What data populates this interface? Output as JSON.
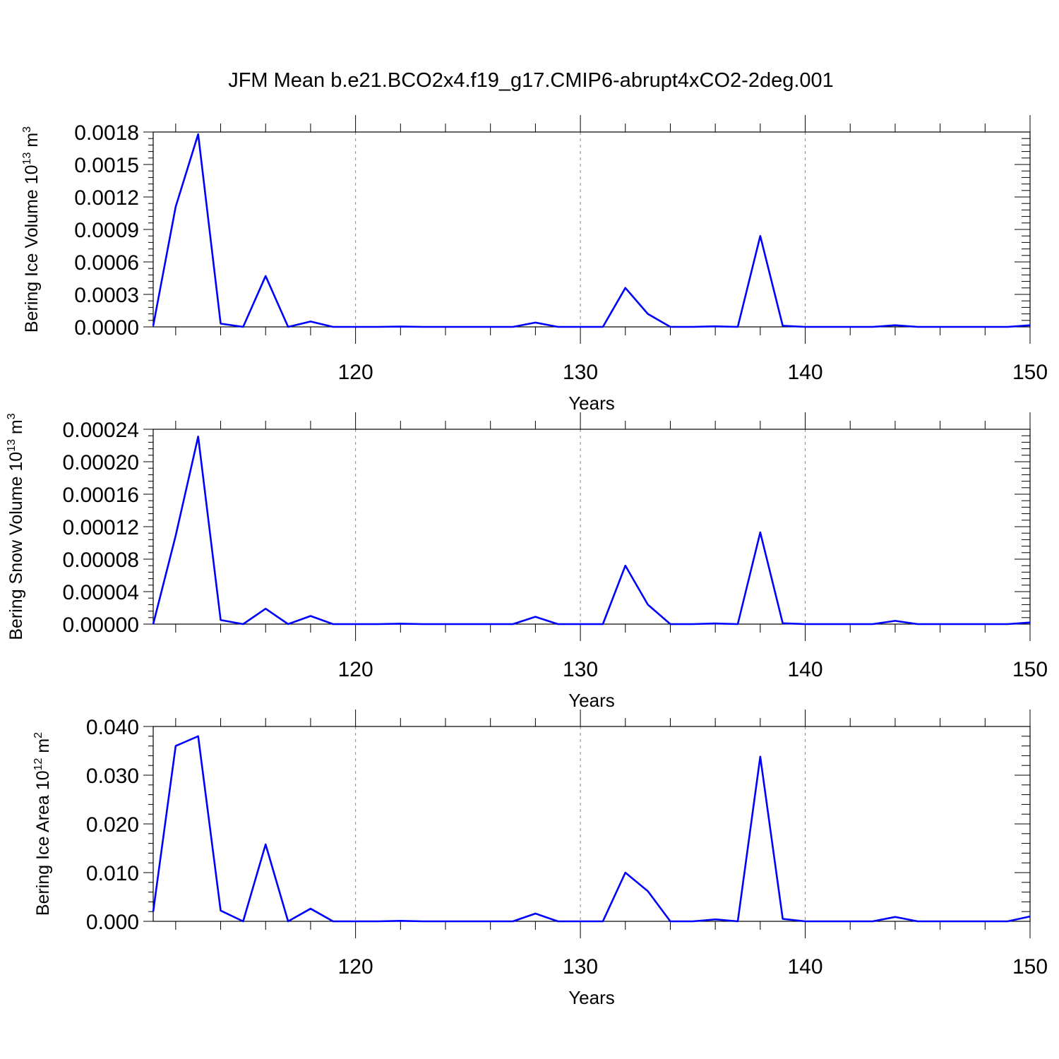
{
  "title": "JFM Mean b.e21.BCO2x4.f19_g17.CMIP6-abrupt4xCO2-2deg.001",
  "line_color": "#0000ff",
  "chart_data": [
    {
      "type": "line",
      "ylabel": "Bering Ice Volume 10",
      "ylabel_exp": "13",
      "ylabel_unit": " m",
      "ylabel_unit_exp": "3",
      "xlabel": "Years",
      "xlim": [
        111,
        150
      ],
      "ylim": [
        0,
        0.0018
      ],
      "yticks": [
        "0.0000",
        "0.0003",
        "0.0006",
        "0.0009",
        "0.0012",
        "0.0015",
        "0.0018"
      ],
      "ytick_values": [
        0,
        0.0003,
        0.0006,
        0.0009,
        0.0012,
        0.0015,
        0.0018
      ],
      "xticks": [
        "120",
        "130",
        "140",
        "150"
      ],
      "xtick_values": [
        120,
        130,
        140,
        150
      ],
      "grid": "dashed vertical at major x ticks",
      "x": [
        111,
        112,
        113,
        114,
        115,
        116,
        117,
        118,
        119,
        120,
        121,
        122,
        123,
        124,
        125,
        126,
        127,
        128,
        129,
        130,
        131,
        132,
        133,
        134,
        135,
        136,
        137,
        138,
        139,
        140,
        141,
        142,
        143,
        144,
        145,
        146,
        147,
        148,
        149,
        150
      ],
      "values": [
        1e-05,
        0.00111,
        0.00178,
        3e-05,
        0.0,
        0.00047,
        0.0,
        5e-05,
        0.0,
        0.0,
        0.0,
        3e-06,
        0.0,
        0.0,
        0.0,
        0.0,
        0.0,
        4e-05,
        0.0,
        0.0,
        0.0,
        0.00036,
        0.00012,
        0.0,
        0.0,
        5e-06,
        0.0,
        0.00084,
        1e-05,
        0.0,
        0.0,
        0.0,
        0.0,
        1.5e-05,
        0.0,
        0.0,
        0.0,
        0.0,
        0.0,
        1.5e-05
      ]
    },
    {
      "type": "line",
      "ylabel": "Bering Snow Volume 10",
      "ylabel_exp": "13",
      "ylabel_unit": " m",
      "ylabel_unit_exp": "3",
      "xlabel": "Years",
      "xlim": [
        111,
        150
      ],
      "ylim": [
        0,
        0.00024
      ],
      "yticks": [
        "0.00000",
        "0.00004",
        "0.00008",
        "0.00012",
        "0.00016",
        "0.00020",
        "0.00024"
      ],
      "ytick_values": [
        0,
        4e-05,
        8e-05,
        0.00012,
        0.00016,
        0.0002,
        0.00024
      ],
      "xticks": [
        "120",
        "130",
        "140",
        "150"
      ],
      "xtick_values": [
        120,
        130,
        140,
        150
      ],
      "grid": "dashed vertical at major x ticks",
      "x": [
        111,
        112,
        113,
        114,
        115,
        116,
        117,
        118,
        119,
        120,
        121,
        122,
        123,
        124,
        125,
        126,
        127,
        128,
        129,
        130,
        131,
        132,
        133,
        134,
        135,
        136,
        137,
        138,
        139,
        140,
        141,
        142,
        143,
        144,
        145,
        146,
        147,
        148,
        149,
        150
      ],
      "values": [
        0.0,
        0.000109,
        0.000231,
        5e-06,
        0.0,
        1.9e-05,
        0.0,
        1e-05,
        0.0,
        0.0,
        0.0,
        5e-07,
        0.0,
        0.0,
        0.0,
        0.0,
        0.0,
        9e-06,
        0.0,
        0.0,
        0.0,
        7.2e-05,
        2.4e-05,
        0.0,
        0.0,
        8e-07,
        0.0,
        0.000113,
        1e-06,
        0.0,
        0.0,
        0.0,
        0.0,
        4e-06,
        0.0,
        0.0,
        0.0,
        0.0,
        0.0,
        2e-06
      ]
    },
    {
      "type": "line",
      "ylabel": "Bering Ice Area 10",
      "ylabel_exp": "12",
      "ylabel_unit": " m",
      "ylabel_unit_exp": "2",
      "xlabel": "Years",
      "xlim": [
        111,
        150
      ],
      "ylim": [
        0,
        0.04
      ],
      "yticks": [
        "0.000",
        "0.010",
        "0.020",
        "0.030",
        "0.040"
      ],
      "ytick_values": [
        0,
        0.01,
        0.02,
        0.03,
        0.04
      ],
      "xticks": [
        "120",
        "130",
        "140",
        "150"
      ],
      "xtick_values": [
        120,
        130,
        140,
        150
      ],
      "grid": "dashed vertical at major x ticks",
      "x": [
        111,
        112,
        113,
        114,
        115,
        116,
        117,
        118,
        119,
        120,
        121,
        122,
        123,
        124,
        125,
        126,
        127,
        128,
        129,
        130,
        131,
        132,
        133,
        134,
        135,
        136,
        137,
        138,
        139,
        140,
        141,
        142,
        143,
        144,
        145,
        146,
        147,
        148,
        149,
        150
      ],
      "values": [
        0.002,
        0.036,
        0.038,
        0.0022,
        0.0,
        0.0158,
        0.0,
        0.0026,
        0.0,
        0.0,
        0.0,
        0.0001,
        0.0,
        0.0,
        0.0,
        0.0,
        0.0,
        0.0016,
        0.0,
        0.0,
        0.0,
        0.01,
        0.0062,
        0.0,
        0.0,
        0.0004,
        0.0,
        0.0338,
        0.0005,
        0.0,
        0.0,
        0.0,
        0.0,
        0.0009,
        0.0,
        0.0,
        0.0,
        0.0,
        0.0,
        0.001
      ]
    }
  ]
}
